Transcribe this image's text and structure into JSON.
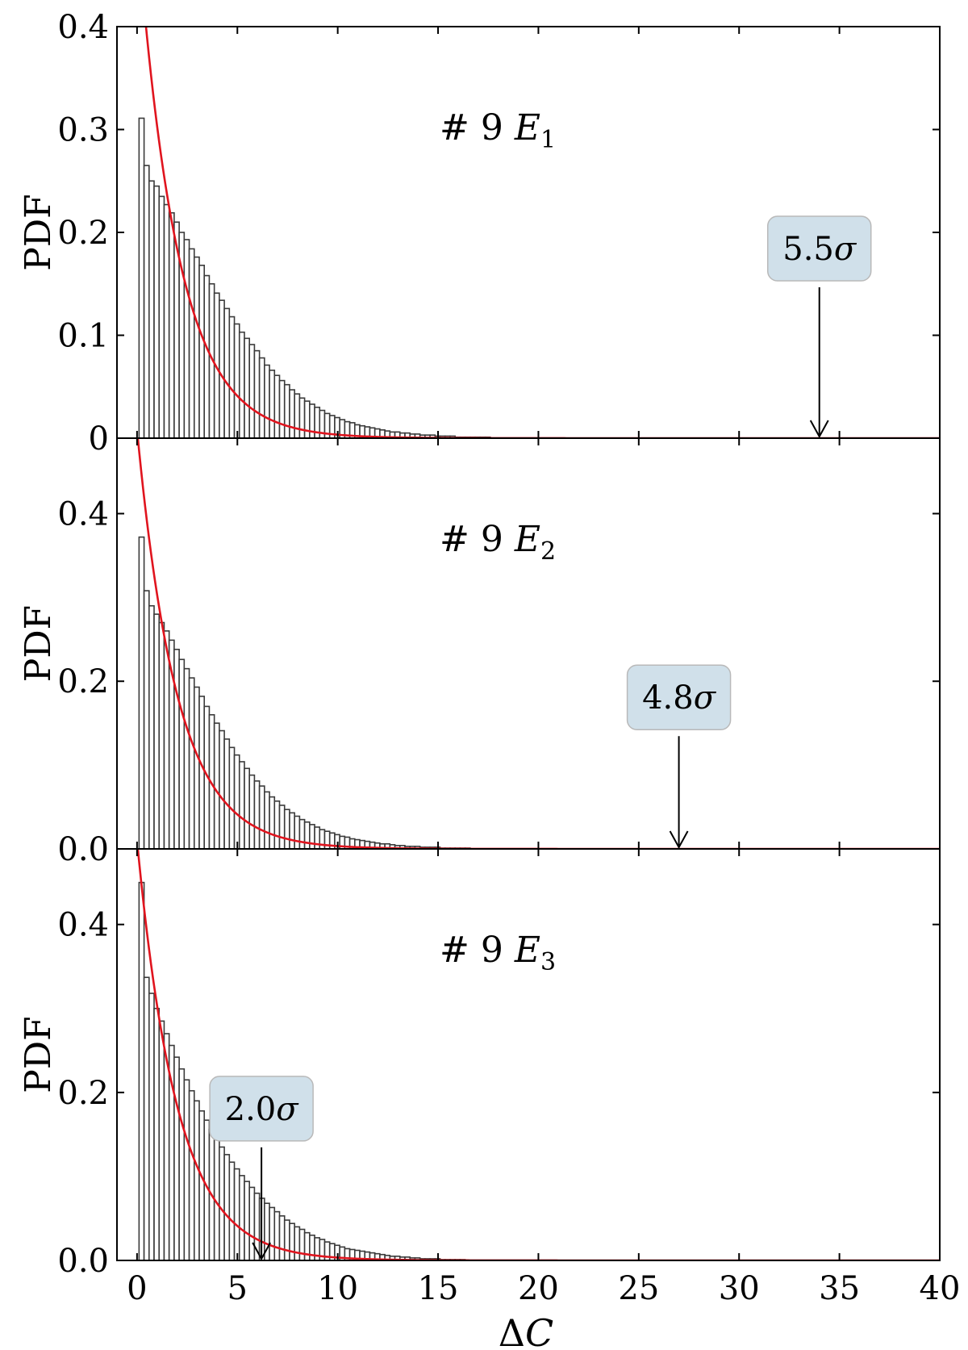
{
  "figure": {
    "xlabel_prefix": "Δ",
    "xlabel_var": "C"
  },
  "chart_data": [
    {
      "type": "bar",
      "panel": {
        "prefix": "# 9",
        "var": "E",
        "sub": "1"
      },
      "ylabel": "PDF",
      "xlim": [
        -1,
        40
      ],
      "ylim": [
        0,
        0.4
      ],
      "yticks": [
        0,
        0.1,
        0.2,
        0.3,
        0.4
      ],
      "yticklabels": [
        "0",
        "0.1",
        "0.2",
        "0.3",
        "0.4"
      ],
      "xticks": [
        0,
        5,
        10,
        15,
        20,
        25,
        30,
        35,
        40
      ],
      "bin_width": 0.25,
      "hist_start": 0.1,
      "hist_values": [
        0.311,
        0.265,
        0.25,
        0.245,
        0.235,
        0.227,
        0.219,
        0.21,
        0.2,
        0.193,
        0.184,
        0.176,
        0.168,
        0.158,
        0.15,
        0.141,
        0.134,
        0.126,
        0.118,
        0.111,
        0.103,
        0.097,
        0.091,
        0.085,
        0.078,
        0.071,
        0.066,
        0.061,
        0.056,
        0.052,
        0.047,
        0.043,
        0.039,
        0.036,
        0.033,
        0.03,
        0.027,
        0.024,
        0.022,
        0.02,
        0.018,
        0.016,
        0.015,
        0.013,
        0.012,
        0.011,
        0.01,
        0.009,
        0.008,
        0.007,
        0.006,
        0.006,
        0.005,
        0.005,
        0.004,
        0.004,
        0.003,
        0.003,
        0.003,
        0.002,
        0.002,
        0.002,
        0.002,
        0.001,
        0.001,
        0.001,
        0.001,
        0.001,
        0.001,
        0.001
      ],
      "curve": {
        "type": "exponential",
        "A": 0.5,
        "lambda": 0.5
      },
      "annotation": {
        "label": "5.5",
        "symbol": "σ",
        "x": 34.0,
        "box_y": 0.2
      }
    },
    {
      "type": "bar",
      "panel": {
        "prefix": "# 9",
        "var": "E",
        "sub": "2"
      },
      "ylabel": "PDF",
      "xlim": [
        -1,
        40
      ],
      "ylim": [
        0,
        0.49
      ],
      "yticks": [
        0,
        0.2,
        0.4
      ],
      "yticklabels": [
        "0.0",
        "0.2",
        "0.4"
      ],
      "xticks": [
        0,
        5,
        10,
        15,
        20,
        25,
        30,
        35,
        40
      ],
      "bin_width": 0.25,
      "hist_start": 0.1,
      "hist_values": [
        0.372,
        0.308,
        0.29,
        0.28,
        0.27,
        0.26,
        0.249,
        0.238,
        0.226,
        0.215,
        0.204,
        0.193,
        0.182,
        0.17,
        0.16,
        0.15,
        0.141,
        0.131,
        0.121,
        0.112,
        0.104,
        0.096,
        0.088,
        0.081,
        0.075,
        0.068,
        0.062,
        0.057,
        0.052,
        0.047,
        0.043,
        0.039,
        0.035,
        0.032,
        0.029,
        0.026,
        0.023,
        0.021,
        0.019,
        0.017,
        0.015,
        0.014,
        0.012,
        0.011,
        0.01,
        0.009,
        0.008,
        0.007,
        0.006,
        0.006,
        0.005,
        0.004,
        0.004,
        0.003,
        0.003,
        0.003,
        0.002,
        0.002,
        0.002,
        0.002,
        0.001,
        0.001,
        0.001,
        0.001,
        0.001,
        0.001
      ],
      "curve": {
        "type": "exponential",
        "A": 0.5,
        "lambda": 0.5
      },
      "annotation": {
        "label": "4.8",
        "symbol": "σ",
        "x": 27.0,
        "box_y": 0.2
      }
    },
    {
      "type": "bar",
      "panel": {
        "prefix": "# 9",
        "var": "E",
        "sub": "3"
      },
      "ylabel": "PDF",
      "xlim": [
        -1,
        40
      ],
      "ylim": [
        0,
        0.49
      ],
      "yticks": [
        0,
        0.2,
        0.4
      ],
      "yticklabels": [
        "0.0",
        "0.2",
        "0.4"
      ],
      "xticks": [
        0,
        5,
        10,
        15,
        20,
        25,
        30,
        35,
        40
      ],
      "xticklabels": [
        "0",
        "5",
        "10",
        "15",
        "20",
        "25",
        "30",
        "35",
        "40"
      ],
      "bin_width": 0.25,
      "hist_start": 0.1,
      "hist_values": [
        0.45,
        0.337,
        0.318,
        0.3,
        0.285,
        0.27,
        0.256,
        0.242,
        0.228,
        0.215,
        0.202,
        0.19,
        0.178,
        0.167,
        0.156,
        0.145,
        0.135,
        0.126,
        0.117,
        0.109,
        0.101,
        0.094,
        0.087,
        0.08,
        0.074,
        0.068,
        0.063,
        0.058,
        0.053,
        0.048,
        0.044,
        0.04,
        0.037,
        0.033,
        0.03,
        0.027,
        0.025,
        0.022,
        0.02,
        0.018,
        0.016,
        0.014,
        0.013,
        0.012,
        0.011,
        0.01,
        0.009,
        0.008,
        0.007,
        0.006,
        0.005,
        0.005,
        0.004,
        0.004,
        0.003,
        0.003,
        0.002,
        0.002,
        0.002,
        0.002,
        0.001,
        0.001,
        0.001,
        0.001,
        0.001
      ],
      "curve": {
        "type": "exponential",
        "A": 0.5,
        "lambda": 0.5
      },
      "annotation": {
        "label": "2.0",
        "symbol": "σ",
        "x": 6.2,
        "box_y": 0.2
      }
    }
  ]
}
